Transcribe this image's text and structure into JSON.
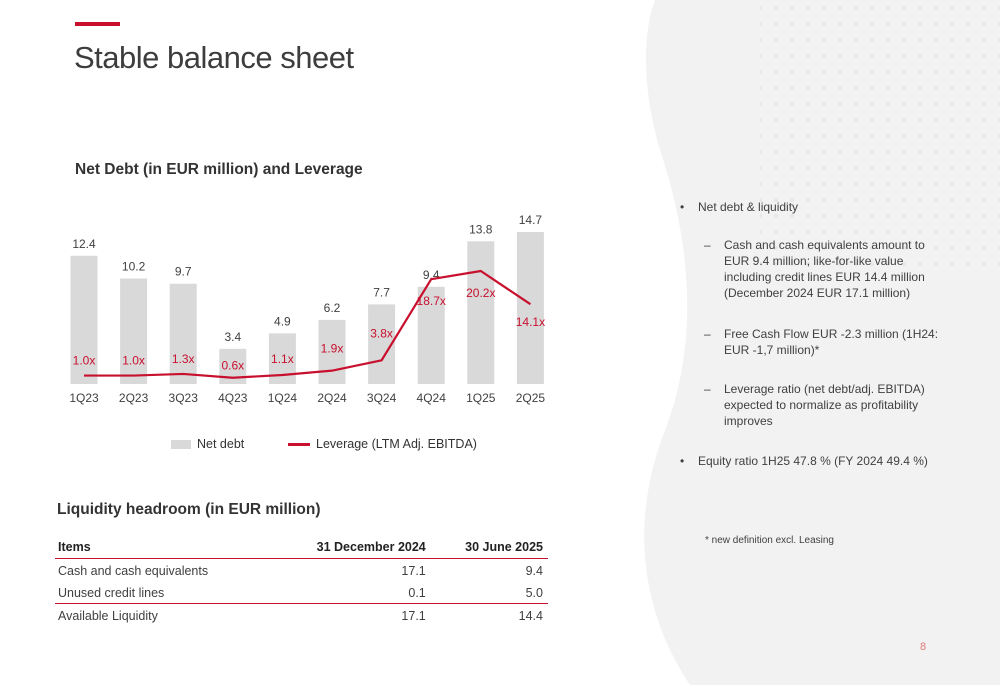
{
  "slide": {
    "title": "Stable balance sheet",
    "page_number": "8",
    "accent_color": "#c8102e"
  },
  "chart_data": {
    "type": "bar",
    "title": "Net Debt (in EUR million) and Leverage",
    "categories": [
      "1Q23",
      "2Q23",
      "3Q23",
      "4Q23",
      "1Q24",
      "2Q24",
      "3Q24",
      "4Q24",
      "1Q25",
      "2Q25"
    ],
    "series": [
      {
        "name": "Net debt",
        "type": "bar",
        "color": "#d9d9d9",
        "values": [
          12.4,
          10.2,
          9.7,
          3.4,
          4.9,
          6.2,
          7.7,
          9.4,
          13.8,
          14.7
        ],
        "labels": [
          "12.4",
          "10.2",
          "9.7",
          "3.4",
          "4.9",
          "6.2",
          "7.7",
          "9.4",
          "13.8",
          "14.7"
        ]
      },
      {
        "name": "Leverage (LTM Adj. EBITDA)",
        "type": "line",
        "color": "#c8102e",
        "values": [
          1.0,
          1.0,
          1.3,
          0.6,
          1.1,
          1.9,
          3.8,
          18.7,
          20.2,
          14.1
        ],
        "labels": [
          "1.0x",
          "1.0x",
          "1.3x",
          "0.6x",
          "1.1x",
          "1.9x",
          "3.8x",
          "18.7x",
          "20.2x",
          "14.1x"
        ]
      }
    ],
    "legend": "bottom",
    "grid": false
  },
  "liquidity": {
    "title": "Liquidity headroom (in EUR million)",
    "headers": [
      "Items",
      "31 December 2024",
      "30 June 2025"
    ],
    "rows": [
      [
        "Cash and cash equivalents",
        "17.1",
        "9.4"
      ],
      [
        "Unused credit lines",
        "0.1",
        "5.0"
      ],
      [
        "Available Liquidity",
        "17.1",
        "14.4"
      ]
    ]
  },
  "bullets": {
    "main1": "Net debt & liquidity",
    "sub1": "Cash and cash equivalents amount to EUR 9.4 million; like-for-like value including credit lines EUR 14.4 million (December 2024 EUR 17.1 million)",
    "sub2": "Free Cash Flow EUR -2.3 million (1H24: EUR -1,7 million)*",
    "sub3": "Leverage ratio (net debt/adj. EBITDA) expected to normalize as profitability improves",
    "main2": "Equity ratio 1H25 47.8 % (FY 2024 49.4 %)",
    "bullet_glyph": "•",
    "dash_glyph": "–",
    "footnote": "* new definition excl. Leasing"
  }
}
